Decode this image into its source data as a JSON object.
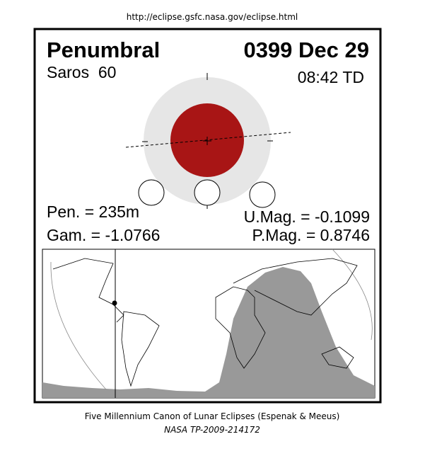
{
  "header": {
    "url": "http://eclipse.gsfc.nasa.gov/eclipse.html"
  },
  "eclipse": {
    "type": "Penumbral",
    "date": "0399 Dec 29",
    "saros": "Saros  60",
    "time": "08:42 TD",
    "pen": "Pen. = 235m",
    "umag": "U.Mag. = -0.1099",
    "gam": "Gam. = -1.0766",
    "pmag": "P.Mag. = 0.8746"
  },
  "footer": {
    "title": "Five Millennium Canon of Lunar Eclipses (Espenak & Meeus)",
    "reference": "NASA TP-2009-214172"
  }
}
